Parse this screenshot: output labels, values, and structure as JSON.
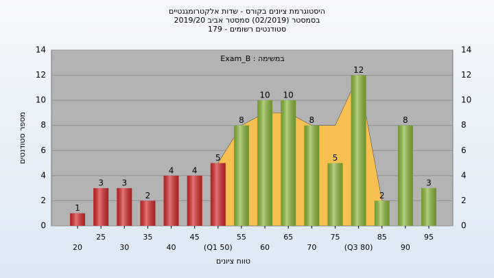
{
  "chart_data": {
    "type": "bar",
    "title": [
      "היסטוגרמת ציונים בקורס - שדות אלקטרומגנטיים",
      "בסמסטר  (02/2019)  סמסטר אביב 2019/20",
      "סטודנטים רשומים - 179"
    ],
    "annotation": "במשימה : Exam_B",
    "xlabel": "טווח ציונים",
    "ylabel": "מספר סטודנטים",
    "categories": [
      "20",
      "25",
      "30",
      "35",
      "40",
      "45",
      "(Q1 50)",
      "55",
      "60",
      "65",
      "70",
      "75",
      "(Q3 80)",
      "85",
      "90",
      "95"
    ],
    "values": [
      1,
      3,
      3,
      2,
      4,
      4,
      5,
      8,
      10,
      10,
      8,
      5,
      12,
      2,
      8,
      3
    ],
    "colors": [
      "#d42a2a",
      "#d42a2a",
      "#d42a2a",
      "#d42a2a",
      "#d42a2a",
      "#d42a2a",
      "#d42a2a",
      "#8ab83a",
      "#8ab83a",
      "#8ab83a",
      "#8ab83a",
      "#8ab83a",
      "#8ab83a",
      "#8ab83a",
      "#8ab83a",
      "#8ab83a"
    ],
    "area": {
      "color": "#f8c050",
      "values": [
        null,
        null,
        null,
        null,
        null,
        null,
        5,
        8,
        9,
        9,
        8,
        8,
        12,
        2,
        null,
        null
      ]
    },
    "ylim": [
      0,
      14
    ],
    "yticks": [
      0,
      2,
      4,
      6,
      8,
      10,
      12,
      14
    ],
    "grid": true
  }
}
